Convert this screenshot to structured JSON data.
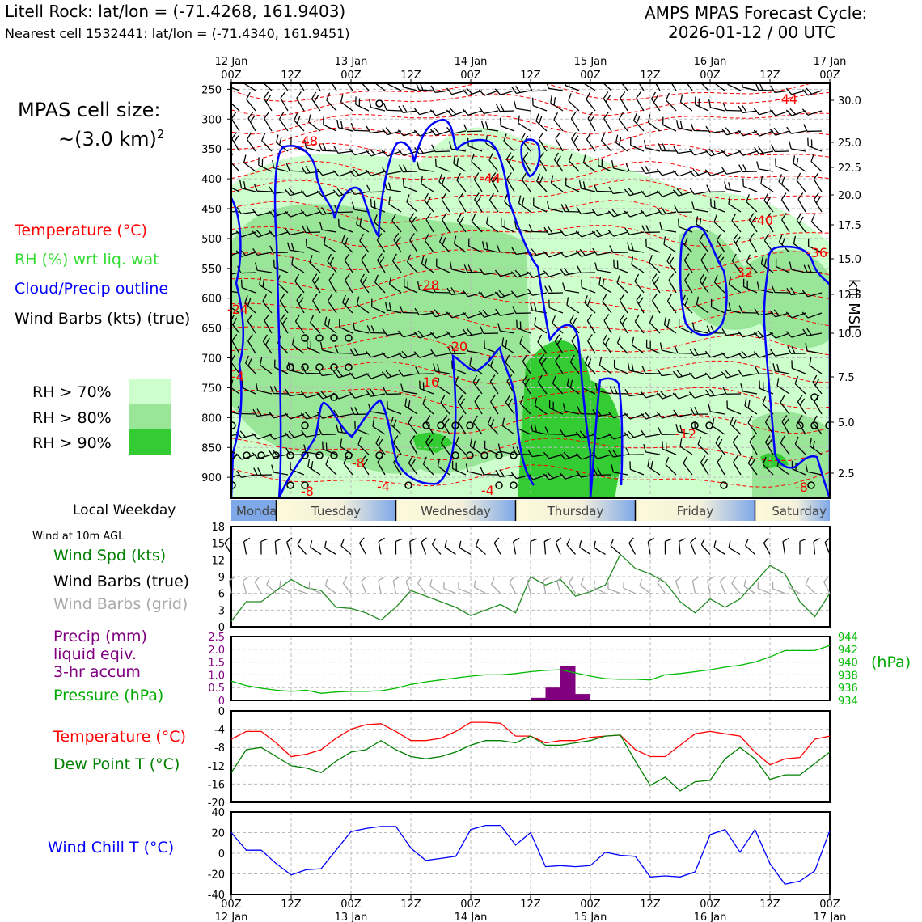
{
  "header": {
    "station": "Litell Rock: lat/lon = (-71.4268, 161.9403)",
    "nearest": "Nearest cell 1532441: lat/lon = (-71.4340, 161.9451)",
    "model_line1": "AMPS MPAS Forecast Cycle:",
    "model_line2": "2026-01-12 / 00 UTC"
  },
  "legend": {
    "cell_size_1": "MPAS cell size:",
    "cell_size_2": "~(3.0 km)",
    "cell_size_sup": "2",
    "temperature": "Temperature (°C)",
    "rh": "RH (%) wrt liq. wat",
    "cloud": "Cloud/Precip outline",
    "barbs": "Wind Barbs (kts) (true)",
    "rh70": "RH > 70%",
    "rh80": "RH > 80%",
    "rh90": "RH > 90%",
    "local_weekday": "Local Weekday",
    "wind10m": "Wind at 10m AGL",
    "wind_spd": "Wind Spd (kts)",
    "wind_barbs_true": "Wind Barbs (true)",
    "wind_barbs_grid": "Wind Barbs (grid)",
    "precip_1": "Precip (mm)",
    "precip_2": "liquid eqiv.",
    "precip_3": "3-hr accum",
    "pressure": "Pressure (hPa)",
    "pressure_unit": "(hPa)",
    "temp2": "Temperature (°C)",
    "dewpoint": "Dew Point T (°C)",
    "windchill": "Wind Chill T (°C)",
    "kft": "kft MSL"
  },
  "colors": {
    "temp": "#ff0000",
    "rh": "#33cc33",
    "cloud": "#0000ff",
    "precip": "#800080",
    "pressure": "#00aa00",
    "dew": "#008000",
    "rh70": "#ccffcc",
    "rh80": "#99e699",
    "rh90": "#33cc33",
    "grid": "#bbbbbb"
  },
  "time_axis": {
    "top_dates": [
      "12 Jan",
      "",
      "13 Jan",
      "",
      "14 Jan",
      "",
      "15 Jan",
      "",
      "16 Jan",
      "",
      "17 Jan"
    ],
    "top_hours": [
      "00Z",
      "12Z",
      "00Z",
      "12Z",
      "00Z",
      "12Z",
      "00Z",
      "12Z",
      "00Z",
      "12Z",
      "00Z"
    ],
    "bottom_hours": [
      "00Z",
      "12Z",
      "00Z",
      "12Z",
      "00Z",
      "12Z",
      "00Z",
      "12Z",
      "00Z",
      "12Z",
      "00Z"
    ],
    "bottom_dates": [
      "12 Jan",
      "",
      "13 Jan",
      "",
      "14 Jan",
      "",
      "15 Jan",
      "",
      "16 Jan",
      "",
      "17 Jan"
    ],
    "weekdays": [
      "Monday",
      "Tuesday",
      "Wednesday",
      "Thursday",
      "Friday",
      "Saturday"
    ]
  },
  "chart_data": [
    {
      "type": "heatmap",
      "title": "Time-height cross section",
      "yticks_hpa": [
        250,
        300,
        350,
        400,
        450,
        500,
        550,
        600,
        650,
        700,
        750,
        800,
        850,
        900
      ],
      "yticks_kft": [
        "30.0",
        "25.0",
        "22.5",
        "20.0",
        "17.5",
        "15.0",
        "12.5",
        "10.0",
        "7.5",
        "5.0",
        "2.5"
      ],
      "ylim_hpa": [
        240,
        935
      ],
      "xlim_hours": [
        0,
        120
      ],
      "temp_labels": [
        "-44",
        "-48",
        "-44",
        "-40",
        "-36",
        "-32",
        "-28",
        "-24",
        "-20",
        "-16",
        "-12",
        "-8",
        "-8",
        "-4",
        "-4",
        "-4",
        "-8"
      ]
    },
    {
      "type": "line",
      "title": "Wind Spd (kts)",
      "ylim": [
        0,
        18
      ],
      "yticks": [
        "0",
        "3",
        "6",
        "9",
        "12",
        "15",
        "18"
      ],
      "x_hours": [
        0,
        3,
        6,
        9,
        12,
        15,
        18,
        21,
        24,
        27,
        30,
        33,
        36,
        39,
        42,
        45,
        48,
        51,
        54,
        57,
        60,
        63,
        66,
        69,
        72,
        75,
        78,
        81,
        84,
        87,
        90,
        93,
        96,
        99,
        102,
        105,
        108,
        111,
        114,
        117,
        120
      ],
      "values": [
        1,
        4.5,
        4.5,
        6.5,
        8.5,
        7,
        6.5,
        3.5,
        3.3,
        2.5,
        1.2,
        3.5,
        6.5,
        5.5,
        4.5,
        3.5,
        2,
        3,
        4,
        2.5,
        9,
        7.5,
        8.5,
        5.5,
        6.3,
        7.5,
        13,
        10.5,
        9.5,
        8,
        4.5,
        2.5,
        5,
        3.5,
        5,
        8,
        11,
        9.5,
        4.5,
        1.8,
        6
      ]
    },
    {
      "type": "bar",
      "title": "Precip (mm) 3-hr accum / Pressure (hPa)",
      "precip_ylim": [
        0,
        2.5
      ],
      "precip_yticks": [
        "0",
        "0.5",
        "1.0",
        "1.5",
        "2.0",
        "2.5"
      ],
      "precip_bars": [
        {
          "x0": 60,
          "x1": 63,
          "value": 0.1
        },
        {
          "x0": 63,
          "x1": 66,
          "value": 0.5
        },
        {
          "x0": 66,
          "x1": 69,
          "value": 1.35
        },
        {
          "x0": 69,
          "x1": 72,
          "value": 0.25
        }
      ],
      "pressure_ylim": [
        934,
        944
      ],
      "pressure_yticks": [
        "934",
        "936",
        "938",
        "940",
        "942",
        "944"
      ],
      "pressure_x": [
        0,
        3,
        6,
        9,
        12,
        15,
        18,
        21,
        24,
        27,
        30,
        33,
        36,
        39,
        42,
        45,
        48,
        51,
        54,
        57,
        60,
        63,
        66,
        69,
        72,
        75,
        78,
        81,
        84,
        87,
        90,
        93,
        96,
        99,
        102,
        105,
        108,
        111,
        114,
        117,
        120
      ],
      "pressure": [
        937,
        936.3,
        935.9,
        935.6,
        935.4,
        935.6,
        935.1,
        935.3,
        935.4,
        935.4,
        935.5,
        935.9,
        936.5,
        936.9,
        937.2,
        937.5,
        937.8,
        938,
        938,
        938.2,
        938.5,
        938.7,
        938.8,
        938.3,
        937.8,
        937.4,
        937.3,
        937.3,
        937.2,
        938,
        938.2,
        938.5,
        938.8,
        939.2,
        939.5,
        940,
        940.8,
        941.8,
        941.8,
        941.8,
        942.6
      ]
    },
    {
      "type": "line",
      "title": "Temperature (°C) / Dew Point T (°C)",
      "ylim": [
        -20,
        0
      ],
      "yticks": [
        "0",
        "-4",
        "-8",
        "-12",
        "-16",
        "-20"
      ],
      "x_hours": [
        0,
        3,
        6,
        9,
        12,
        15,
        18,
        21,
        24,
        27,
        30,
        33,
        36,
        39,
        42,
        45,
        48,
        51,
        54,
        57,
        60,
        63,
        66,
        69,
        72,
        75,
        78,
        81,
        84,
        87,
        90,
        93,
        96,
        99,
        102,
        105,
        108,
        111,
        114,
        117,
        120
      ],
      "series": [
        {
          "name": "Temperature",
          "values": [
            -6.2,
            -4.5,
            -4.5,
            -7,
            -10,
            -9.5,
            -8.5,
            -6,
            -4,
            -3,
            -2.8,
            -4.5,
            -6.5,
            -6.5,
            -6,
            -4.5,
            -2.5,
            -2.5,
            -2.7,
            -5.5,
            -5.5,
            -7,
            -6.5,
            -6.5,
            -5.8,
            -5.5,
            -5.3,
            -8.5,
            -10,
            -10,
            -7.5,
            -5,
            -4.5,
            -5,
            -5.5,
            -9,
            -11.8,
            -10.5,
            -10.2,
            -6.2,
            -5.5
          ]
        },
        {
          "name": "Dew Point",
          "values": [
            -13.5,
            -8.5,
            -8,
            -10,
            -12,
            -12.5,
            -13.5,
            -11,
            -9,
            -8.5,
            -6.5,
            -8.5,
            -10,
            -10.5,
            -10,
            -9,
            -7.5,
            -6.5,
            -6.5,
            -7,
            -5.5,
            -7.5,
            -7.5,
            -7,
            -6.5,
            -5.5,
            -5.3,
            -11,
            -16.3,
            -14.5,
            -17.5,
            -15.5,
            -15.2,
            -10.5,
            -8,
            -10.5,
            -15,
            -14,
            -14,
            -11.5,
            -9
          ]
        }
      ]
    },
    {
      "type": "line",
      "title": "Wind Chill T (°C)",
      "ylim": [
        -40,
        40
      ],
      "yticks": [
        "40",
        "20",
        "0",
        "-20",
        "-40"
      ],
      "x_hours": [
        0,
        3,
        6,
        9,
        12,
        15,
        18,
        21,
        24,
        27,
        30,
        33,
        36,
        39,
        42,
        45,
        48,
        51,
        54,
        57,
        60,
        63,
        66,
        69,
        72,
        75,
        78,
        81,
        84,
        87,
        90,
        93,
        96,
        99,
        102,
        105,
        108,
        111,
        114,
        117,
        120
      ],
      "values": [
        20,
        3,
        3,
        -10,
        -21,
        -16,
        -15,
        3,
        21,
        24,
        26,
        26,
        5,
        -7,
        -5,
        -3,
        23,
        27,
        27,
        8,
        20,
        -13,
        -12,
        -13,
        -12,
        1,
        -2,
        -3,
        -23,
        -22,
        -23,
        -18,
        18,
        23,
        1,
        23,
        -10,
        -30,
        -27,
        -17,
        22
      ]
    }
  ]
}
